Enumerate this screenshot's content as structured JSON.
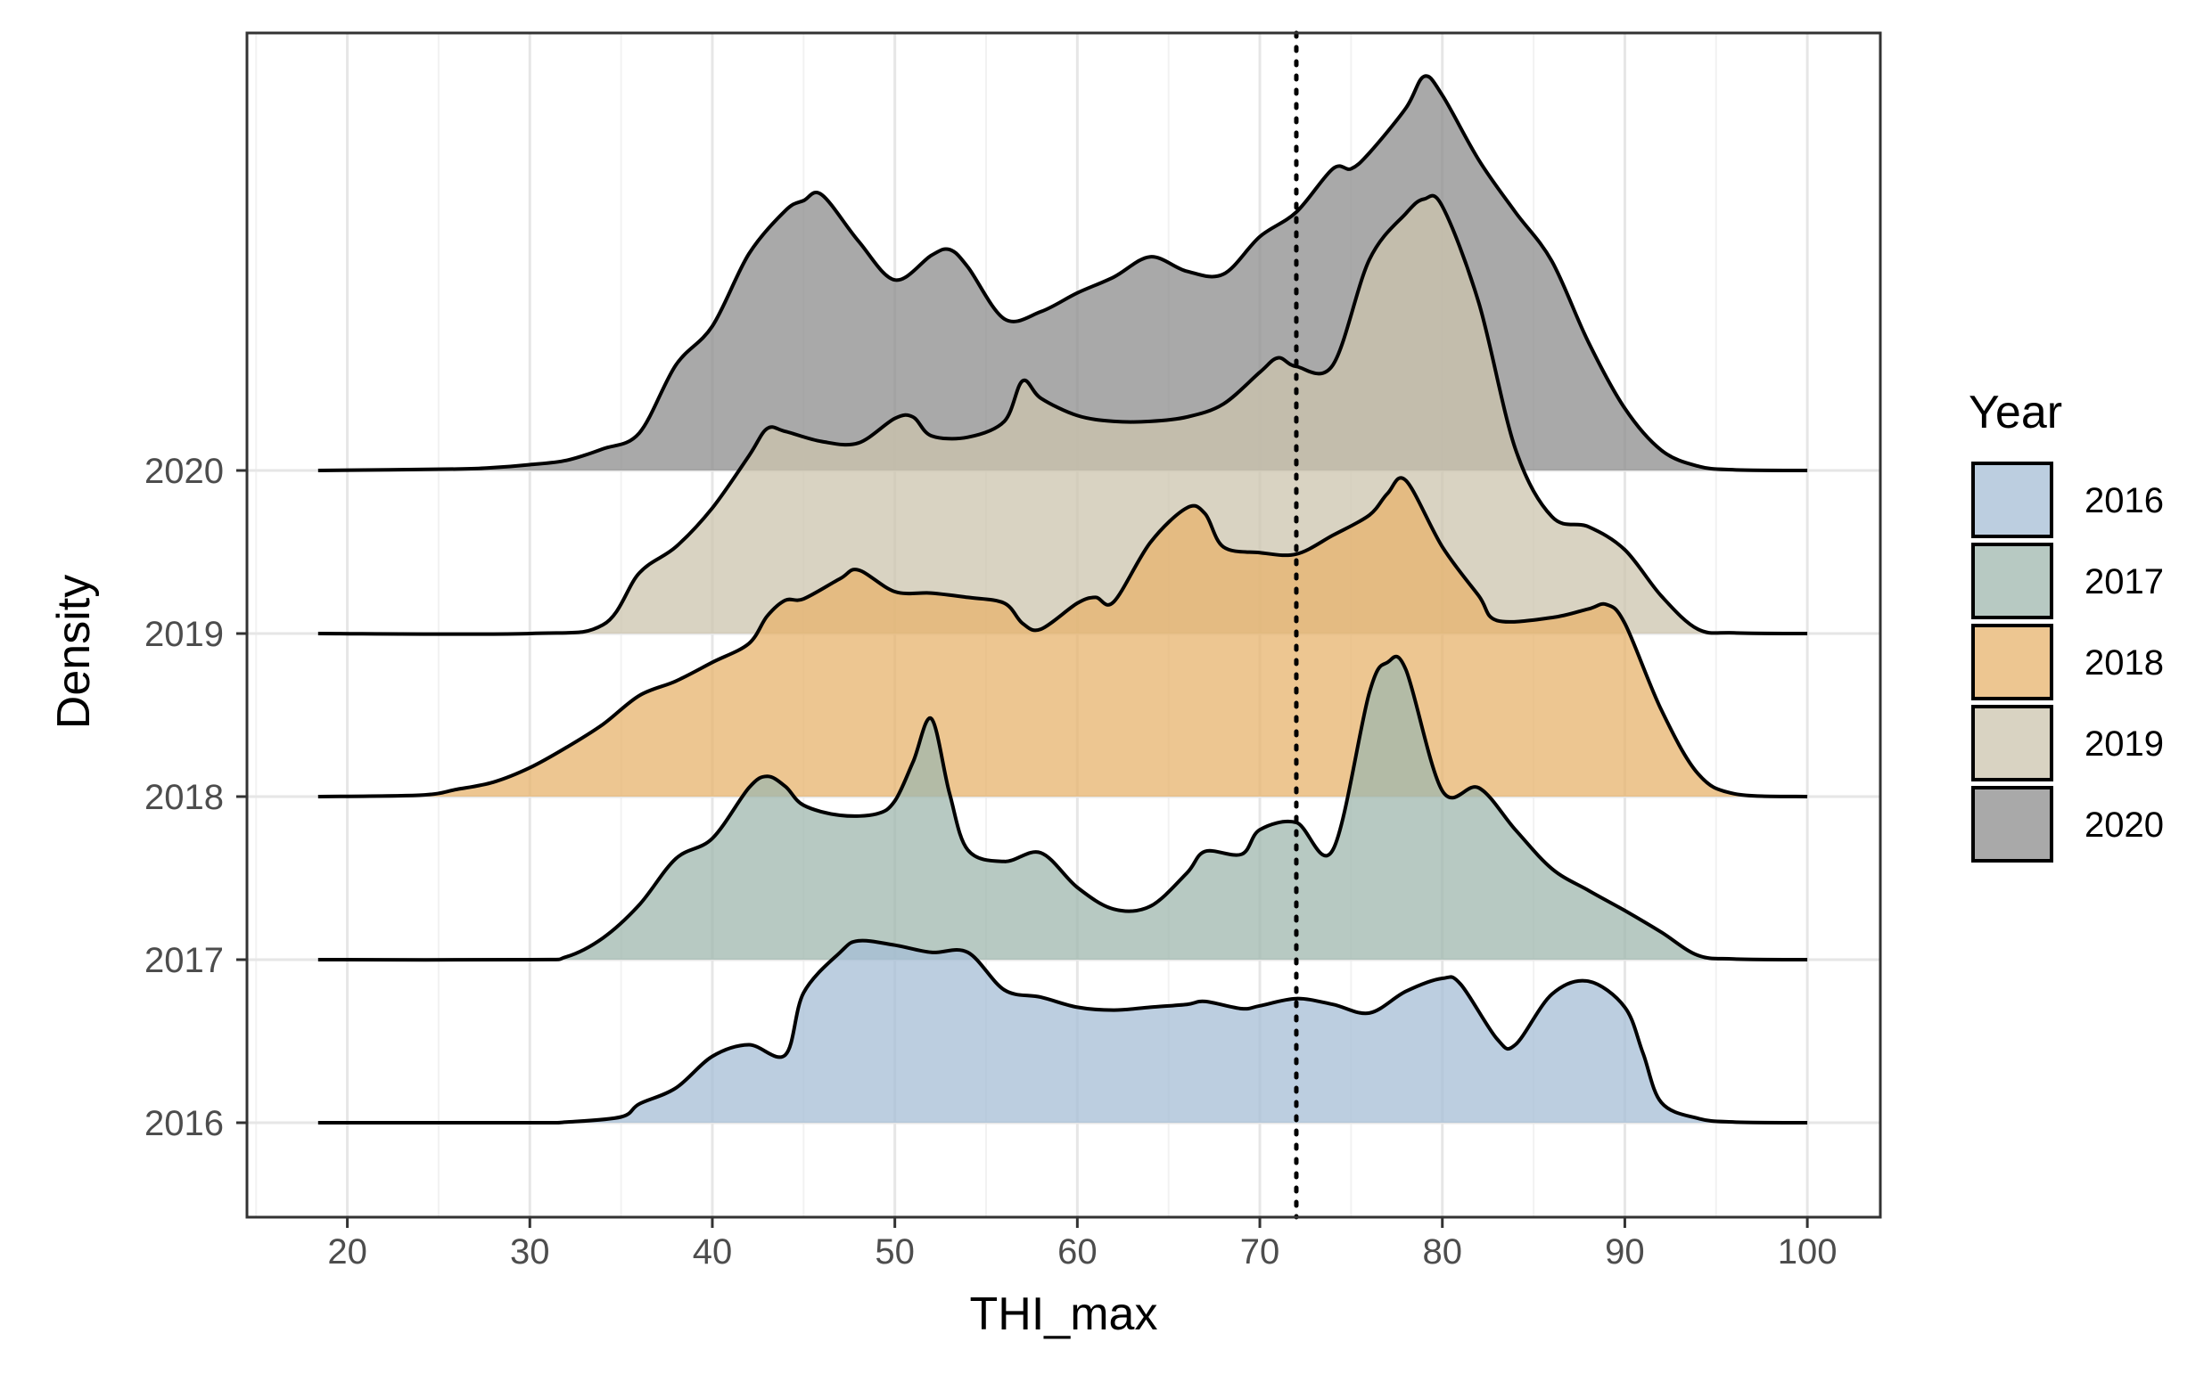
{
  "chart_data": {
    "type": "ridgeline",
    "xlabel": "THI_max",
    "ylabel": "Density",
    "xlim": [
      14.5,
      104
    ],
    "x_ticks": [
      20,
      30,
      40,
      50,
      60,
      70,
      80,
      90,
      100
    ],
    "y_categories": [
      "2016",
      "2017",
      "2018",
      "2019",
      "2020"
    ],
    "reference_line": {
      "x": 72,
      "style": "dotted"
    },
    "grid": true,
    "legend": {
      "title": "Year",
      "placement": "right"
    },
    "series": [
      {
        "name": "2016",
        "color": "#a6bed5",
        "x": [
          18.4,
          30,
          32,
          35,
          36,
          38,
          40,
          42,
          44,
          45,
          47,
          48,
          50,
          52,
          54,
          56,
          58,
          60,
          62,
          64,
          66,
          67,
          69,
          70,
          72,
          74,
          76,
          78,
          80,
          81,
          83,
          84,
          86,
          88,
          90,
          91,
          92,
          94,
          96,
          100
        ],
        "density": [
          0,
          0,
          0.005,
          0.04,
          0.13,
          0.24,
          0.46,
          0.54,
          0.47,
          0.9,
          1.18,
          1.26,
          1.23,
          1.18,
          1.18,
          0.92,
          0.87,
          0.8,
          0.78,
          0.8,
          0.82,
          0.84,
          0.79,
          0.81,
          0.86,
          0.82,
          0.76,
          0.91,
          1.0,
          0.96,
          0.58,
          0.54,
          0.89,
          0.98,
          0.8,
          0.48,
          0.14,
          0.03,
          0.005,
          0
        ]
      },
      {
        "name": "2017",
        "color": "#9fb7ad",
        "x": [
          18.4,
          30,
          32,
          34,
          36,
          38,
          40,
          42,
          43,
          44,
          45,
          47,
          49,
          50,
          51,
          52,
          53,
          54,
          56,
          58,
          60,
          62,
          64,
          66,
          67,
          69,
          70,
          72,
          74,
          76,
          77,
          78,
          80,
          82,
          84,
          86,
          88,
          90,
          92,
          94,
          96,
          100
        ],
        "density": [
          0,
          0,
          0.02,
          0.15,
          0.38,
          0.7,
          0.84,
          1.19,
          1.27,
          1.2,
          1.07,
          1.0,
          1.01,
          1.1,
          1.37,
          1.67,
          1.15,
          0.76,
          0.68,
          0.74,
          0.5,
          0.35,
          0.37,
          0.6,
          0.75,
          0.73,
          0.9,
          0.95,
          0.76,
          1.85,
          2.06,
          2.01,
          1.17,
          1.19,
          0.9,
          0.63,
          0.48,
          0.34,
          0.19,
          0.03,
          0.005,
          0
        ]
      },
      {
        "name": "2018",
        "color": "#e7b36c",
        "x": [
          18.4,
          24,
          26,
          28,
          30,
          32,
          34,
          36,
          38,
          40,
          42,
          43,
          44,
          45,
          47,
          48,
          50,
          52,
          54,
          56,
          57,
          58,
          60,
          61,
          62,
          64,
          66,
          67,
          68,
          70,
          72,
          74,
          76,
          77,
          78,
          80,
          82,
          83,
          86,
          88,
          89,
          90,
          92,
          94,
          96,
          100
        ],
        "density": [
          0,
          0.01,
          0.05,
          0.1,
          0.2,
          0.34,
          0.5,
          0.7,
          0.8,
          0.93,
          1.06,
          1.25,
          1.36,
          1.37,
          1.51,
          1.57,
          1.42,
          1.41,
          1.38,
          1.34,
          1.2,
          1.16,
          1.34,
          1.38,
          1.35,
          1.76,
          2.0,
          1.96,
          1.73,
          1.69,
          1.68,
          1.81,
          1.95,
          2.1,
          2.19,
          1.73,
          1.39,
          1.22,
          1.24,
          1.3,
          1.33,
          1.2,
          0.6,
          0.16,
          0.02,
          0
        ]
      },
      {
        "name": "2019",
        "color": "#ccc4ad",
        "x": [
          18.4,
          30,
          34,
          36,
          38,
          40,
          42,
          43,
          44,
          46,
          48,
          50,
          51,
          52,
          54,
          56,
          57,
          58,
          60,
          62,
          64,
          66,
          68,
          70,
          71,
          72,
          74,
          76,
          78,
          79,
          80,
          82,
          84,
          86,
          88,
          90,
          92,
          94,
          96,
          100
        ],
        "density": [
          0,
          0,
          0.06,
          0.42,
          0.6,
          0.87,
          1.23,
          1.42,
          1.4,
          1.33,
          1.32,
          1.49,
          1.5,
          1.37,
          1.36,
          1.47,
          1.75,
          1.63,
          1.51,
          1.47,
          1.47,
          1.5,
          1.59,
          1.81,
          1.91,
          1.85,
          1.86,
          2.59,
          2.91,
          3.01,
          2.96,
          2.29,
          1.28,
          0.81,
          0.74,
          0.58,
          0.26,
          0.03,
          0.005,
          0
        ]
      },
      {
        "name": "2020",
        "color": "#8c8c8c",
        "x": [
          18.4,
          26,
          28,
          30,
          32,
          34,
          36,
          38,
          40,
          42,
          44,
          45,
          46,
          48,
          50,
          52,
          53,
          54,
          56,
          58,
          60,
          62,
          64,
          66,
          68,
          70,
          72,
          74,
          75,
          76,
          78,
          79,
          80,
          82,
          84,
          86,
          88,
          90,
          92,
          94,
          96,
          100
        ],
        "density": [
          0,
          0.01,
          0.02,
          0.04,
          0.07,
          0.15,
          0.26,
          0.73,
          1.0,
          1.5,
          1.8,
          1.87,
          1.91,
          1.59,
          1.32,
          1.49,
          1.53,
          1.41,
          1.05,
          1.1,
          1.23,
          1.34,
          1.48,
          1.38,
          1.36,
          1.62,
          1.79,
          2.09,
          2.09,
          2.2,
          2.51,
          2.73,
          2.6,
          2.15,
          1.79,
          1.45,
          0.89,
          0.43,
          0.14,
          0.03,
          0.005,
          0
        ]
      }
    ]
  }
}
